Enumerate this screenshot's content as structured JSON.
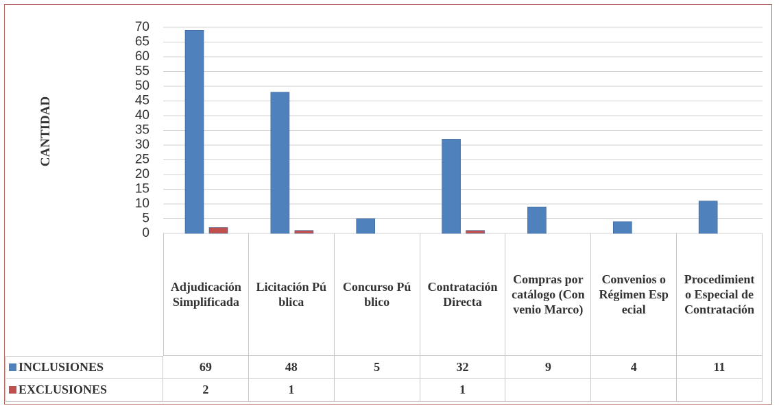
{
  "chart_data": {
    "type": "bar",
    "y_label": "CANTIDAD",
    "categories": [
      "Adjudicación Simplificada",
      "Licitación Pública",
      "Concurso Público",
      "Contratación Directa",
      "Compras por catálogo (Convenio Marco)",
      "Convenios o Régimen Especial",
      "Procedimiento Especial de Contratación"
    ],
    "series": [
      {
        "name": "INCLUSIONES",
        "color": "#4f81bd",
        "values": [
          69,
          48,
          5,
          32,
          9,
          4,
          11
        ]
      },
      {
        "name": "EXCLUSIONES",
        "color": "#c0504d",
        "values": [
          2,
          1,
          null,
          1,
          null,
          null,
          null
        ]
      }
    ],
    "ylim": [
      0,
      70
    ],
    "yticks": [
      0,
      5,
      10,
      15,
      20,
      25,
      30,
      35,
      40,
      45,
      50,
      55,
      60,
      65,
      70
    ],
    "grid": true
  }
}
